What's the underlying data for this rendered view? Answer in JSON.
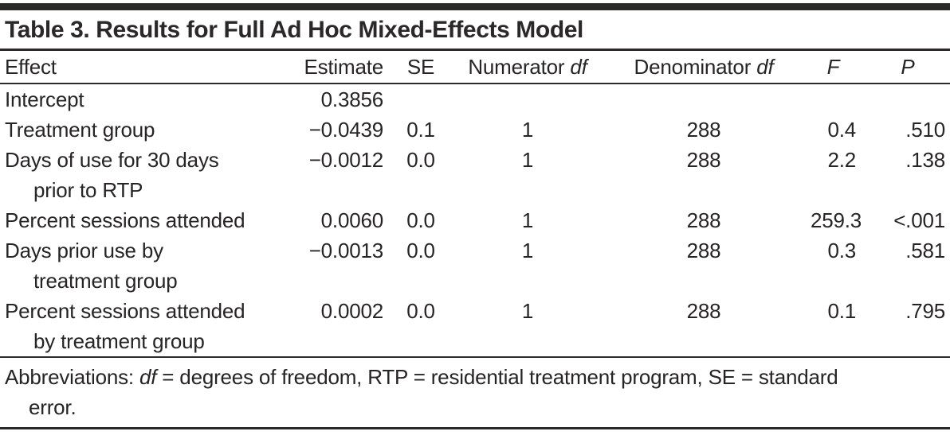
{
  "title": "Table 3. Results for Full Ad Hoc Mixed-Effects Model",
  "colors": {
    "text": "#262424",
    "rule": "#2b2a29",
    "background": "#ffffff"
  },
  "table": {
    "headers": {
      "effect": "Effect",
      "estimate": "Estimate",
      "se": "SE",
      "numerator_df": {
        "text": "Numerator",
        "italic": "df"
      },
      "denominator_df": {
        "text": "Denominator",
        "italic": "df"
      },
      "f": "F",
      "p": "P"
    },
    "rows": [
      {
        "effect_line1": "Intercept",
        "effect_line2": "",
        "estimate": "0.3856",
        "se": "",
        "numerator_df": "",
        "denominator_df": "",
        "f": "",
        "p": ""
      },
      {
        "effect_line1": "Treatment group",
        "effect_line2": "",
        "estimate": "−0.0439",
        "se": "0.1",
        "numerator_df": "1",
        "denominator_df": "288",
        "f": "0.4",
        "p": ".510"
      },
      {
        "effect_line1": "Days of use for 30 days",
        "effect_line2": "prior to RTP",
        "estimate": "−0.0012",
        "se": "0.0",
        "numerator_df": "1",
        "denominator_df": "288",
        "f": "2.2",
        "p": ".138"
      },
      {
        "effect_line1": "Percent sessions attended",
        "effect_line2": "",
        "estimate": "0.0060",
        "se": "0.0",
        "numerator_df": "1",
        "denominator_df": "288",
        "f": "259.3",
        "p": "<.001"
      },
      {
        "effect_line1": "Days prior use by",
        "effect_line2": "treatment group",
        "estimate": "−0.0013",
        "se": "0.0",
        "numerator_df": "1",
        "denominator_df": "288",
        "f": "0.3",
        "p": ".581"
      },
      {
        "effect_line1": "Percent sessions attended",
        "effect_line2": "by treatment group",
        "estimate": "0.0002",
        "se": "0.0",
        "numerator_df": "1",
        "denominator_df": "288",
        "f": "0.1",
        "p": ".795"
      }
    ]
  },
  "footnote": {
    "label": "Abbreviations: ",
    "df_abbr": "df",
    "rest": " = degrees of freedom, RTP = residential treatment program, SE = standard",
    "line2": "error."
  }
}
